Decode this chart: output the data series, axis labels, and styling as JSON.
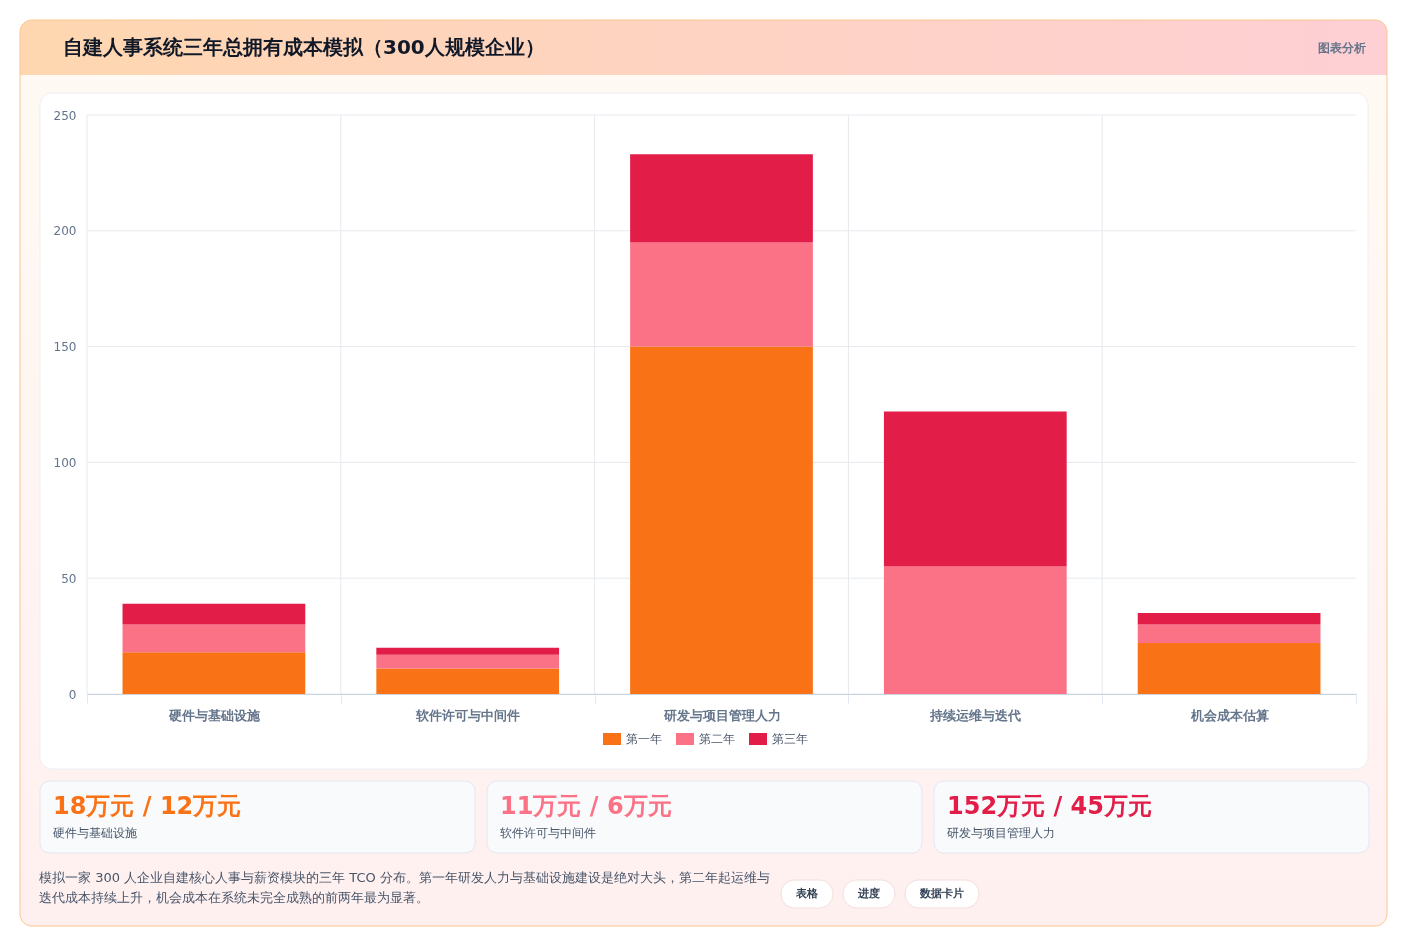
{
  "chart_data": {
    "type": "bar",
    "title": "自建人事系统三年总拥有成本模拟（300人规模企业）",
    "categories": [
      "硬件与基础设施",
      "软件许可与中间件",
      "研发与项目管理人力",
      "持续运维与迭代",
      "机会成本估算"
    ],
    "series": [
      {
        "name": "第一年",
        "color": "#f97316",
        "values": [
          18,
          11,
          150,
          0,
          22
        ]
      },
      {
        "name": "第二年",
        "color": "#fb7185",
        "values": [
          12,
          6,
          45,
          55,
          8
        ]
      },
      {
        "name": "第三年",
        "color": "#e11d48",
        "values": [
          9,
          3,
          38,
          67,
          5
        ]
      }
    ],
    "stacked": true,
    "ylim": [
      0,
      250
    ],
    "yticks": [
      0,
      50,
      100,
      150,
      200,
      250
    ],
    "grid": true,
    "legend": "bottom",
    "annotations": [
      "图表分析",
      "18万元 / 12万元",
      "硬件与基础设施",
      "11万元 / 6万元",
      "软件许可与中间件",
      "152万元 / 45万元",
      "研发与项目管理人力",
      "模拟一家 300 人企业自建核心人事与薪资模块的三年 TCO 分布。第一年研发人力与基础设施建设是绝对大头，第二年起运维与迭代成本持续上升，机会成本在系统未完全成熟的前两年最为显著。",
      "表格",
      "进度",
      "数据卡片"
    ]
  }
}
